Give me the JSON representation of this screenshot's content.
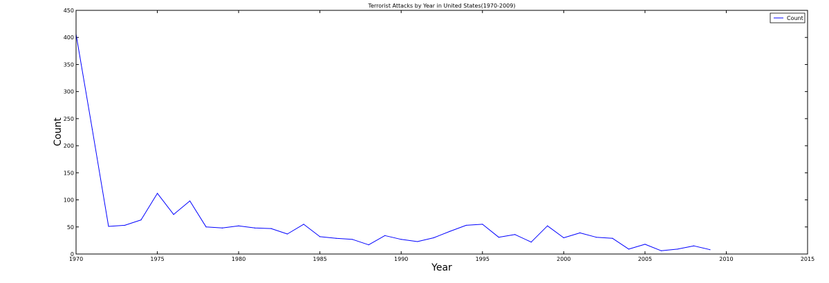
{
  "chart_data": {
    "type": "line",
    "title": "Terrorist Attacks by Year in United States(1970-2009)",
    "xlabel": "Year",
    "ylabel": "Count",
    "xlim": [
      1970,
      2015
    ],
    "ylim": [
      0,
      450
    ],
    "x_ticks": [
      1970,
      1975,
      1980,
      1985,
      1990,
      1995,
      2000,
      2005,
      2010,
      2015
    ],
    "y_ticks": [
      0,
      50,
      100,
      150,
      200,
      250,
      300,
      350,
      400,
      450
    ],
    "grid": false,
    "legend_position": "top-right",
    "series": [
      {
        "name": "Count",
        "color": "#0000ff",
        "x": [
          1970,
          1971,
          1972,
          1973,
          1974,
          1975,
          1976,
          1977,
          1978,
          1979,
          1980,
          1981,
          1982,
          1983,
          1984,
          1985,
          1986,
          1987,
          1988,
          1989,
          1990,
          1991,
          1992,
          1993,
          1994,
          1995,
          1996,
          1997,
          1998,
          1999,
          2000,
          2001,
          2002,
          2003,
          2004,
          2005,
          2006,
          2007,
          2008,
          2009
        ],
        "values": [
          406,
          230,
          51,
          53,
          63,
          112,
          73,
          98,
          50,
          48,
          52,
          48,
          47,
          37,
          55,
          32,
          29,
          27,
          17,
          34,
          27,
          23,
          30,
          42,
          53,
          55,
          31,
          36,
          22,
          52,
          30,
          39,
          31,
          29,
          9,
          18,
          6,
          9,
          15,
          8
        ]
      }
    ]
  }
}
